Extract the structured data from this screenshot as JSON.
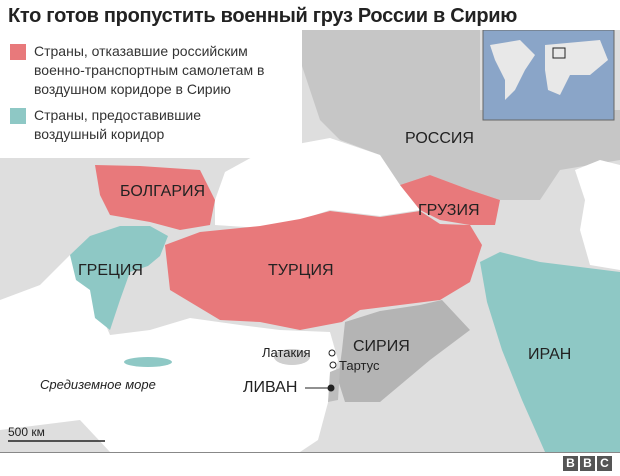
{
  "title": "Кто готов пропустить военный груз России в Сирию",
  "legend": [
    {
      "label": "Страны, отказавшие российским военно-транспортным самолетам в воздушном коридоре в Сирию",
      "color": "#e8797b"
    },
    {
      "label": "Страны, предоставившие воздушный коридор",
      "color": "#8ec8c5"
    }
  ],
  "countries": {
    "russia": "РОССИЯ",
    "bulgaria": "БОЛГАРИЯ",
    "georgia": "ГРУЗИЯ",
    "greece": "ГРЕЦИЯ",
    "turkey": "ТУРЦИЯ",
    "syria": "СИРИЯ",
    "iran": "ИРАН",
    "lebanon": "ЛИВАН"
  },
  "cities": {
    "latakia": "Латакия",
    "tartus": "Тартус"
  },
  "sea": "Средиземное море",
  "scale": "500 км",
  "logo": [
    "B",
    "B",
    "C"
  ]
}
